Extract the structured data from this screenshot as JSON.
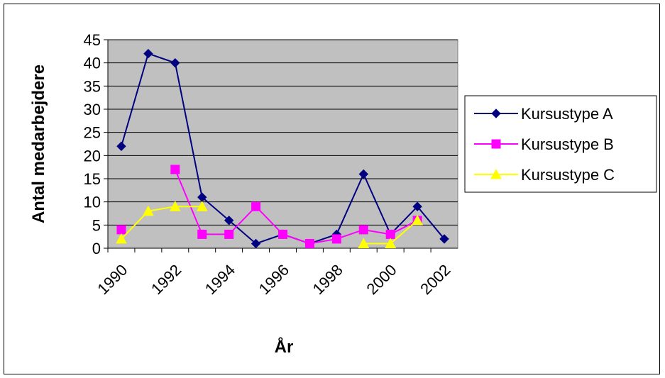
{
  "chart_data": {
    "type": "line",
    "xlabel": "År",
    "ylabel": "Antal medarbejdere",
    "x": [
      1990,
      1991,
      1992,
      1993,
      1994,
      1995,
      1996,
      1997,
      1998,
      1999,
      2000,
      2001,
      2002
    ],
    "xticks": [
      "1990",
      "1992",
      "1994",
      "1996",
      "1998",
      "2000",
      "2002"
    ],
    "yticks": [
      "0",
      "5",
      "10",
      "15",
      "20",
      "25",
      "30",
      "35",
      "40",
      "45"
    ],
    "ylim": [
      0,
      45
    ],
    "grid": "horizontal",
    "plot_background": "#C0C0C0",
    "legend_position": "right",
    "series": [
      {
        "name": "Kursustype A",
        "color": "#000080",
        "marker": "diamond",
        "values": [
          22,
          42,
          40,
          11,
          6,
          1,
          3,
          1,
          3,
          16,
          3,
          9,
          2
        ]
      },
      {
        "name": "Kursustype B",
        "color": "#FF00FF",
        "marker": "square",
        "values": [
          4,
          null,
          17,
          3,
          3,
          9,
          3,
          1,
          2,
          4,
          3,
          6,
          null
        ]
      },
      {
        "name": "Kursustype C",
        "color": "#FFFF00",
        "marker": "triangle",
        "values": [
          2,
          8,
          9,
          9,
          null,
          null,
          null,
          null,
          null,
          1,
          1,
          6,
          null
        ]
      }
    ]
  }
}
